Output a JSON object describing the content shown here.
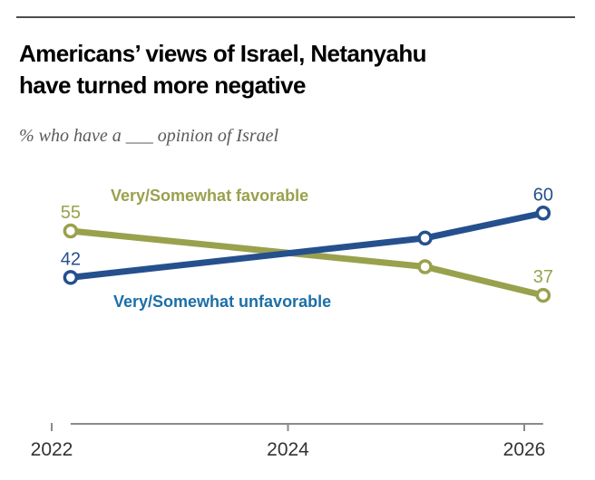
{
  "header": {
    "title_lines": [
      "Americans’ views of Israel, Netanyahu",
      "have turned more negative"
    ],
    "subtitle": "% who have a ___ opinion of Israel"
  },
  "colors": {
    "favorable": "#99a14d",
    "unfavorable": "#25508e",
    "unfavorable_legend_text": "#1a6fa8",
    "favorable_legend_text": "#99a14d",
    "axis_line": "#8a8a8a",
    "year_label_text": "#333333",
    "top_rule": "#4d4d4d",
    "marker_fill": "#ffffff"
  },
  "chart_data": {
    "type": "line",
    "x": [
      2022.16,
      2025.16,
      2026.16
    ],
    "xticks": [
      2022,
      2024,
      2026
    ],
    "xtick_labels": [
      "2022",
      "2024",
      "2026"
    ],
    "x_range_note": "x axis spans 2022 to just past 2026; data points fall slightly right of year ticks",
    "y_axis_visible": false,
    "grid": false,
    "title": "Americans’ views of Israel, Netanyahu have turned more negative",
    "subtitle": "% who have a ___ opinion of Israel",
    "legend_position": "inline-labels",
    "series": [
      {
        "name": "Very/Somewhat favorable",
        "color": "#99a14d",
        "values": [
          55,
          45,
          37
        ],
        "point_labels": [
          "55",
          null,
          "37"
        ]
      },
      {
        "name": "Very/Somewhat unfavorable",
        "color": "#25508e",
        "values": [
          42,
          53,
          60
        ],
        "point_labels": [
          "42",
          null,
          "60"
        ]
      }
    ]
  }
}
